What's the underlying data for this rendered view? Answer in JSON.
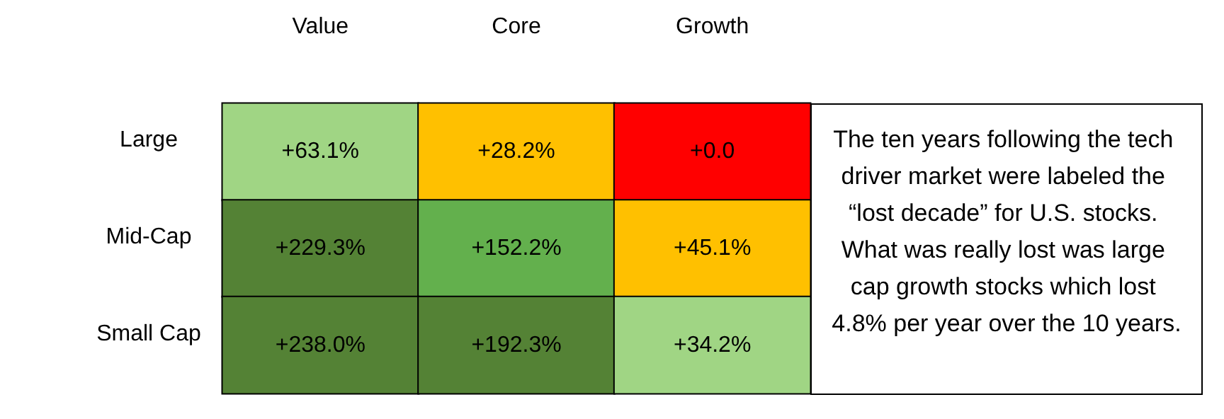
{
  "chart_data": {
    "type": "heatmap",
    "categories": [
      "Value",
      "Core",
      "Growth"
    ],
    "y_categories": [
      "Large",
      "Mid-Cap",
      "Small Cap"
    ],
    "cells": [
      [
        63.1,
        28.2,
        0.0
      ],
      [
        229.3,
        152.2,
        45.1
      ],
      [
        238.0,
        192.3,
        34.2
      ]
    ],
    "cell_labels": [
      [
        "+63.1%",
        "+28.2%",
        "+0.0"
      ],
      [
        "+229.3%",
        "+152.2%",
        "+45.1%"
      ],
      [
        "+238.0%",
        "+192.3%",
        "+34.2%"
      ]
    ],
    "colors": [
      [
        "#a0d584",
        "#ffc000",
        "#ff0000"
      ],
      [
        "#548235",
        "#63b04d",
        "#ffc000"
      ],
      [
        "#548235",
        "#548235",
        "#a0d584"
      ]
    ],
    "annotations": [
      "The ten years following the tech driver market were labeled the “lost decade” for U.S. stocks. What was really lost was large cap growth stocks which lost 4.8% per year over the 10 years."
    ]
  }
}
